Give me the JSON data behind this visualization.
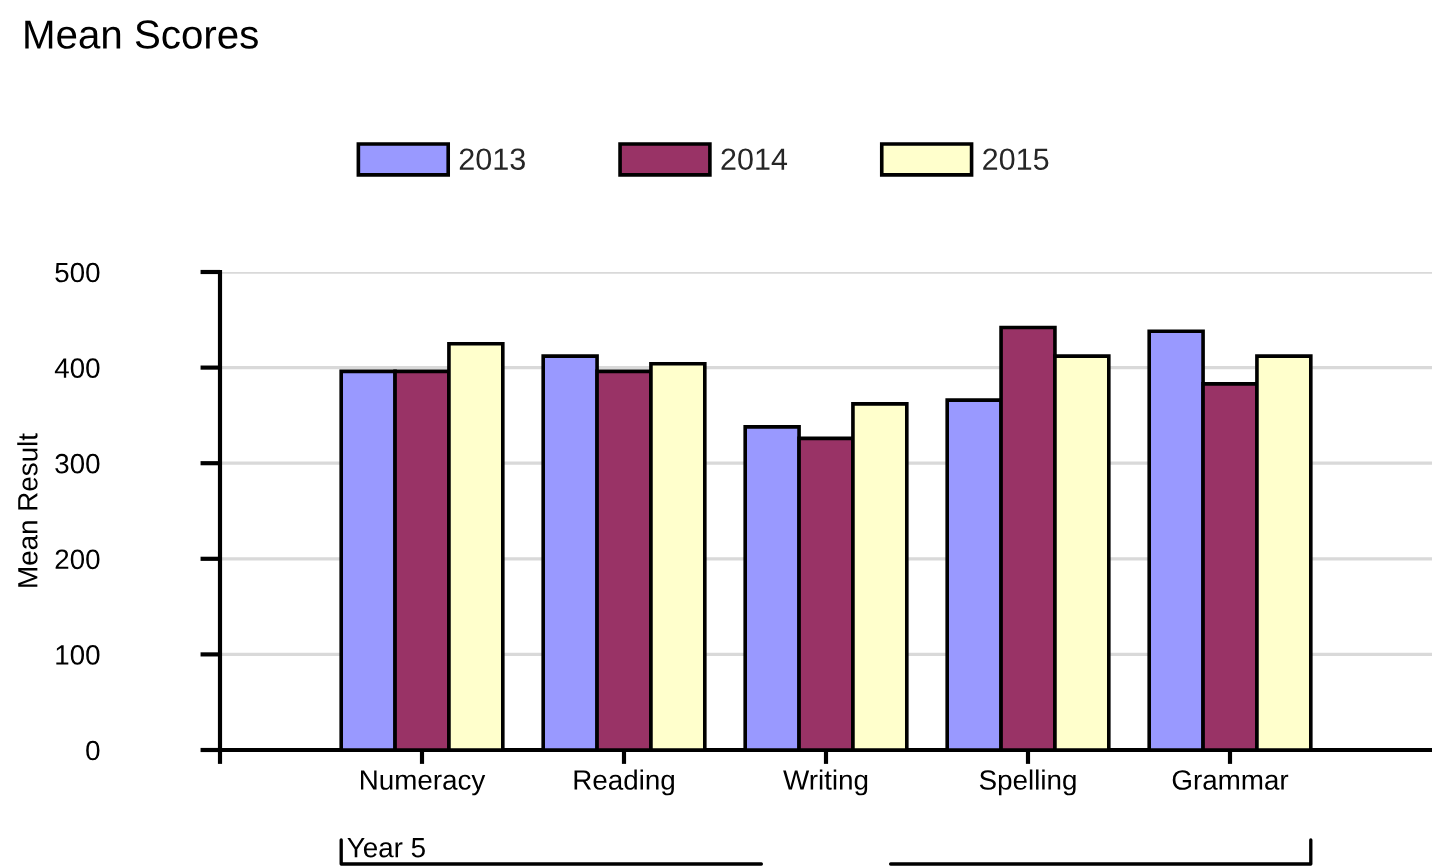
{
  "chart_data": {
    "type": "bar",
    "title": "Mean Scores",
    "ylabel": "Mean Result",
    "categories": [
      null,
      "Numeracy",
      "Reading",
      "Writing",
      "Spelling",
      "Grammar"
    ],
    "series": [
      {
        "name": "2013",
        "color": "#9999ff",
        "values": [
          null,
          396,
          412,
          338,
          366,
          438
        ]
      },
      {
        "name": "2014",
        "color": "#993366",
        "values": [
          null,
          396,
          396,
          326,
          442,
          383
        ]
      },
      {
        "name": "2015",
        "color": "#ffffcc",
        "values": [
          null,
          425,
          404,
          362,
          412,
          412
        ]
      }
    ],
    "ylim": [
      0,
      500
    ],
    "yticks": [
      0,
      100,
      200,
      300,
      400,
      500
    ],
    "grid": "y",
    "legend": "top",
    "annotations": [
      "Year 5"
    ]
  }
}
